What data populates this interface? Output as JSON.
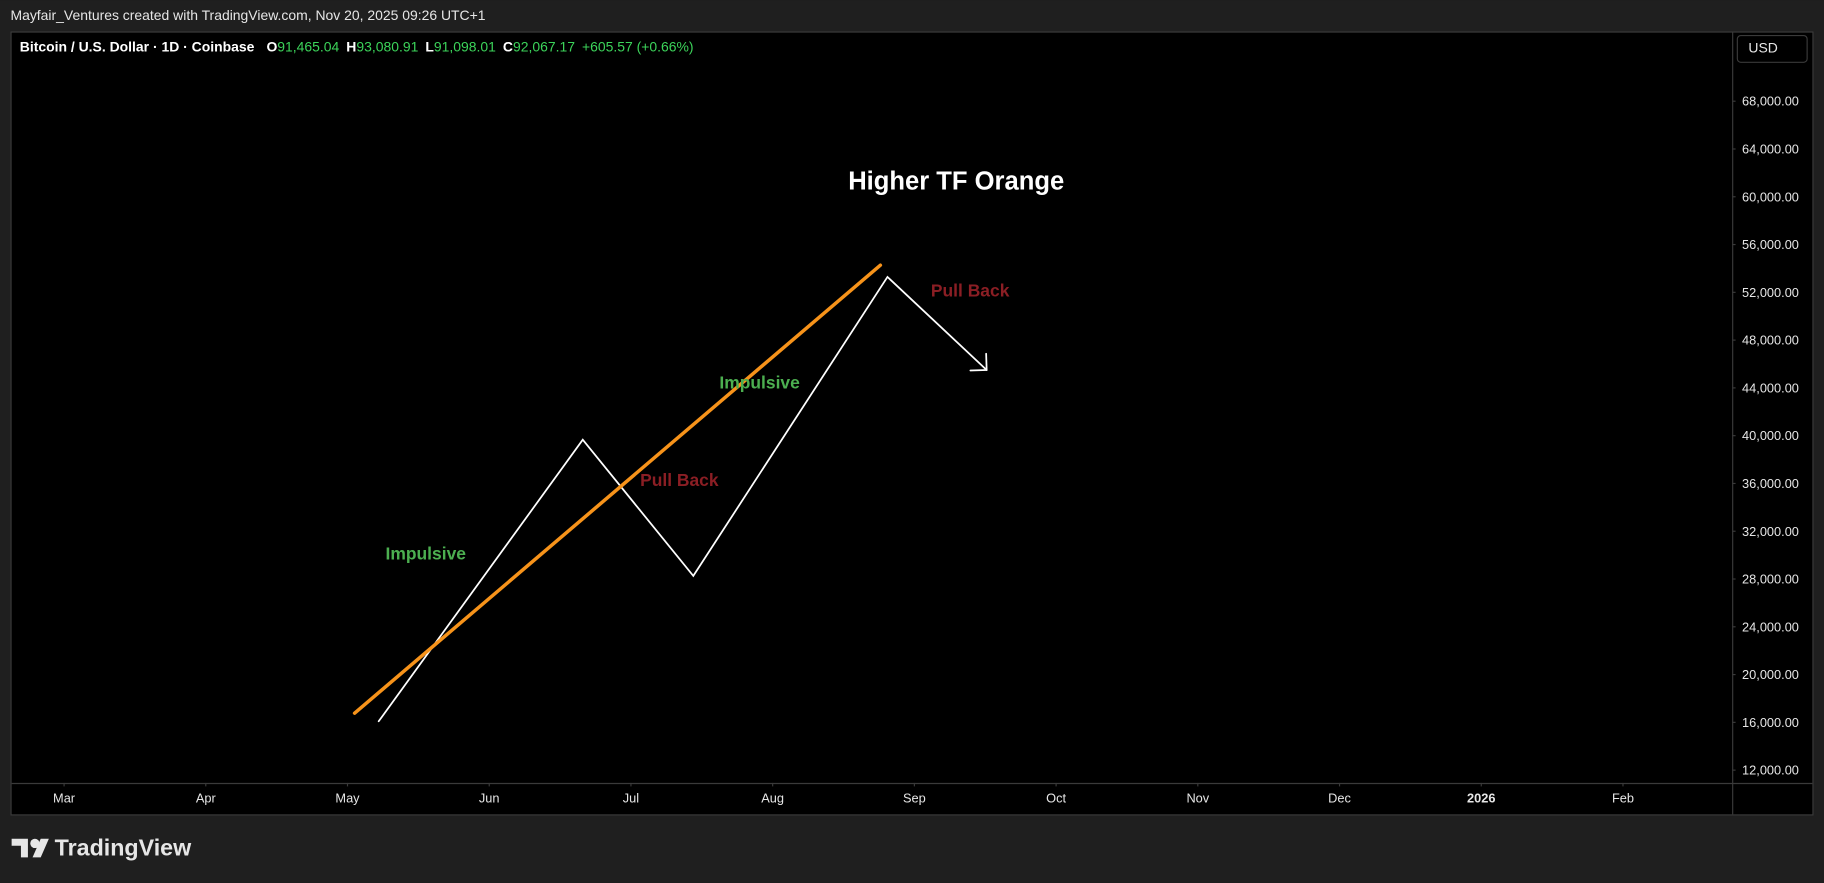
{
  "header": {
    "credit": "Mayfair_Ventures created with TradingView.com, Nov 20, 2025 09:26 UTC+1",
    "symbol": "Bitcoin / U.S. Dollar · 1D · Coinbase",
    "ohlc": [
      {
        "label": "O",
        "value": "91,465.04"
      },
      {
        "label": "H",
        "value": "93,080.91"
      },
      {
        "label": "L",
        "value": "91,098.01"
      },
      {
        "label": "C",
        "value": "92,067.17"
      }
    ],
    "change": "+605.57 (+0.66%)"
  },
  "currency": "USD",
  "brand": "TradingView",
  "chart_data": {
    "type": "line",
    "title": "Higher TF Orange",
    "annotations": [
      {
        "text": "Impulsive",
        "color": "#4caf50"
      },
      {
        "text": "Pull Back",
        "color": "#8b1e24"
      },
      {
        "text": "Impulsive",
        "color": "#4caf50"
      },
      {
        "text": "Pull Back",
        "color": "#8b1e24"
      }
    ],
    "series": [
      {
        "color": "#ffffff",
        "x": [
          2.22,
          3.66,
          4.44,
          5.81,
          6.51
        ],
        "values": [
          16090,
          39660,
          28260,
          53290,
          45500
        ],
        "arrow": true
      },
      {
        "color": "#f7931a",
        "x": [
          2.05,
          5.76
        ],
        "values": [
          16770,
          54270
        ]
      }
    ],
    "xlim": [
      -0.37,
      11.77
    ],
    "xticks": [
      {
        "value": 0,
        "label": "Mar"
      },
      {
        "value": 1,
        "label": "Apr"
      },
      {
        "value": 2,
        "label": "May"
      },
      {
        "value": 3,
        "label": "Jun"
      },
      {
        "value": 4,
        "label": "Jul"
      },
      {
        "value": 5,
        "label": "Aug"
      },
      {
        "value": 6,
        "label": "Sep"
      },
      {
        "value": 7,
        "label": "Oct"
      },
      {
        "value": 8,
        "label": "Nov"
      },
      {
        "value": 9,
        "label": "Dec"
      },
      {
        "value": 10,
        "label": "2026",
        "bold": true
      },
      {
        "value": 11,
        "label": "Feb"
      }
    ],
    "ylim": [
      10930,
      73840
    ],
    "yticks": [
      {
        "value": 12000,
        "label": "12,000.00"
      },
      {
        "value": 16000,
        "label": "16,000.00"
      },
      {
        "value": 20000,
        "label": "20,000.00"
      },
      {
        "value": 24000,
        "label": "24,000.00"
      },
      {
        "value": 28000,
        "label": "28,000.00"
      },
      {
        "value": 32000,
        "label": "32,000.00"
      },
      {
        "value": 36000,
        "label": "36,000.00"
      },
      {
        "value": 40000,
        "label": "40,000.00"
      },
      {
        "value": 44000,
        "label": "44,000.00"
      },
      {
        "value": 48000,
        "label": "48,000.00"
      },
      {
        "value": 52000,
        "label": "52,000.00"
      },
      {
        "value": 56000,
        "label": "56,000.00"
      },
      {
        "value": 60000,
        "label": "60,000.00"
      },
      {
        "value": 64000,
        "label": "64,000.00"
      },
      {
        "value": 68000,
        "label": "68,000.00"
      }
    ],
    "grid": false
  }
}
